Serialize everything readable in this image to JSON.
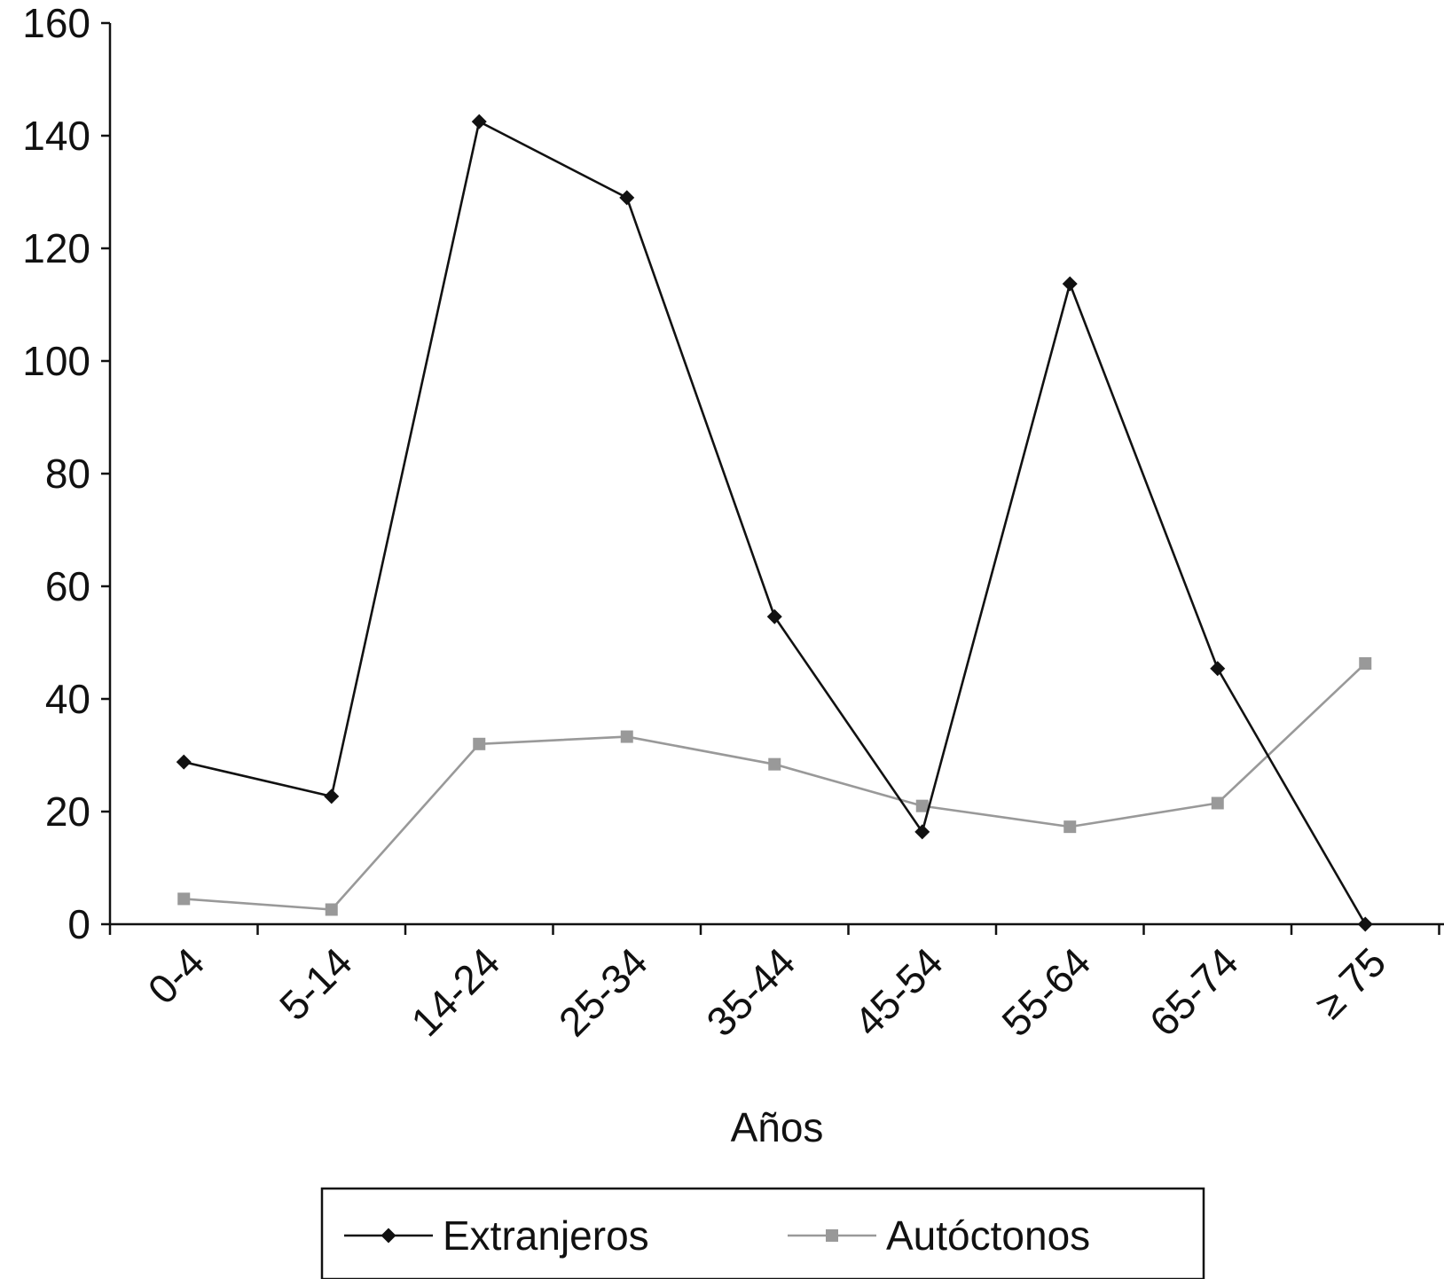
{
  "chart_data": {
    "type": "line",
    "title": "",
    "xlabel": "Años",
    "ylabel": "",
    "categories": [
      "0-4",
      "5-14",
      "14-24",
      "25-34",
      "35-44",
      "45-54",
      "55-64",
      "65-74",
      "≥ 75"
    ],
    "ylim": [
      0,
      160
    ],
    "yticks": [
      0,
      20,
      40,
      60,
      80,
      100,
      120,
      140,
      160
    ],
    "grid": false,
    "legend_position": "bottom",
    "series": [
      {
        "name": "Extranjeros",
        "color": "#111111",
        "marker": "diamond",
        "values": [
          28.8,
          22.7,
          142.5,
          129.0,
          54.6,
          16.4,
          113.7,
          45.4,
          0
        ]
      },
      {
        "name": "Autóctonos",
        "color": "#999999",
        "marker": "square",
        "values": [
          4.5,
          2.6,
          32.0,
          33.3,
          28.4,
          21.0,
          17.3,
          21.5,
          46.3
        ]
      }
    ]
  }
}
